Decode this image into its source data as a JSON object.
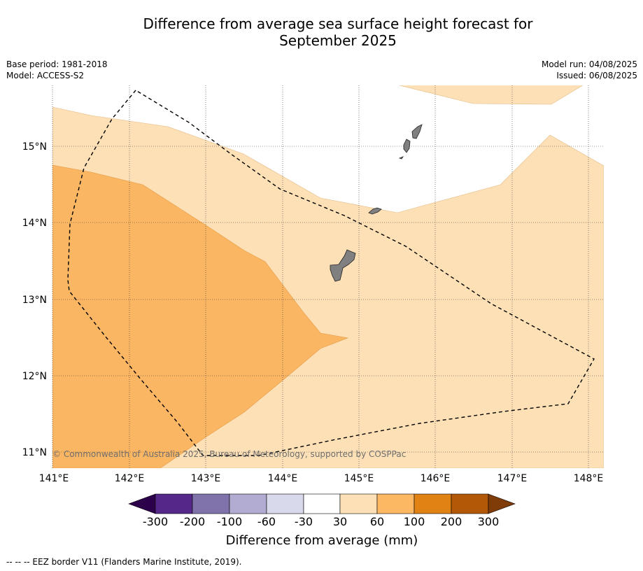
{
  "title_line1": "Difference from average sea surface height forecast for",
  "title_line2": "September 2025",
  "meta_left": {
    "base_period": "Base period: 1981-2018",
    "model": "Model: ACCESS-S2"
  },
  "meta_right": {
    "model_run": "Model run: 04/08/2025",
    "issued": "Issued: 06/08/2025"
  },
  "lat_ticks": [
    "15°N",
    "14°N",
    "13°N",
    "12°N",
    "11°N"
  ],
  "lon_ticks": [
    "141°E",
    "142°E",
    "143°E",
    "144°E",
    "145°E",
    "146°E",
    "147°E",
    "148°E"
  ],
  "copyright": "© Commonwealth of Australia 2025, Bureau of Meteorology, supported by COSPPac",
  "colorbar": {
    "ticks": [
      "-300",
      "-200",
      "-100",
      "-60",
      "-30",
      "30",
      "60",
      "100",
      "200",
      "300"
    ],
    "colors": [
      "#2d004b",
      "#542788",
      "#8073ac",
      "#b2abd2",
      "#d8daeb",
      "#ffffff",
      "#fee0b6",
      "#fdb863",
      "#e08214",
      "#b35806",
      "#7f3b08"
    ],
    "label": "Difference from average (mm)"
  },
  "footer": "--  --  -- EEZ border V11 (Flanders Marine Institute, 2019).",
  "colors": {
    "band_30_60": "#fde0b6",
    "band_60_100": "#fbb663",
    "land": "#808080"
  }
}
